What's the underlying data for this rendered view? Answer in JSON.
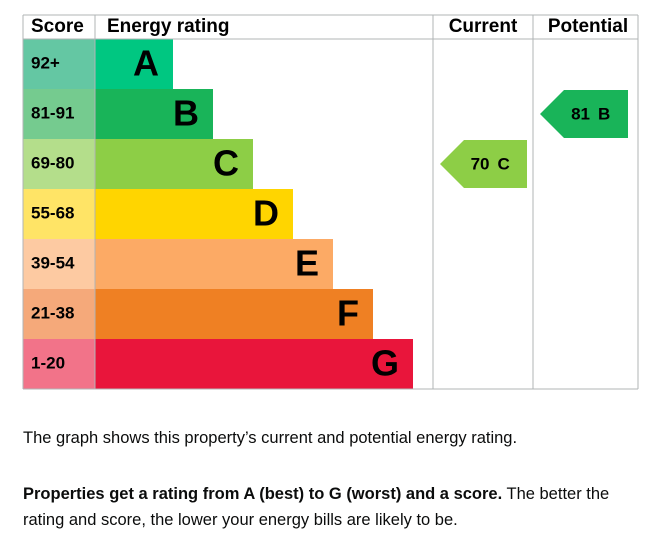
{
  "header": {
    "score": "Score",
    "energy_rating": "Energy rating",
    "current": "Current",
    "potential": "Potential"
  },
  "bands": [
    {
      "range": "92+",
      "letter": "A",
      "color": "#00c781",
      "score_color": "#64c7a3"
    },
    {
      "range": "81-91",
      "letter": "B",
      "color": "#19b459",
      "score_color": "#75cb8f"
    },
    {
      "range": "69-80",
      "letter": "C",
      "color": "#8dce46",
      "score_color": "#b4de8b"
    },
    {
      "range": "55-68",
      "letter": "D",
      "color": "#ffd500",
      "score_color": "#ffe466"
    },
    {
      "range": "39-54",
      "letter": "E",
      "color": "#fcaa65",
      "score_color": "#fdcaa2"
    },
    {
      "range": "21-38",
      "letter": "F",
      "color": "#ef8023",
      "score_color": "#f5a97a"
    },
    {
      "range": "1-20",
      "letter": "G",
      "color": "#e9153b",
      "score_color": "#f27389"
    }
  ],
  "current": {
    "score": 70,
    "rating": "C"
  },
  "potential": {
    "score": 81,
    "rating": "B"
  },
  "description": "The graph shows this property’s current and potential energy rating.",
  "explanation": {
    "bold": "Properties get a rating from A (best) to G (worst) and a score.",
    "rest": "The better the rating and score, the lower your energy bills are likely to be."
  }
}
